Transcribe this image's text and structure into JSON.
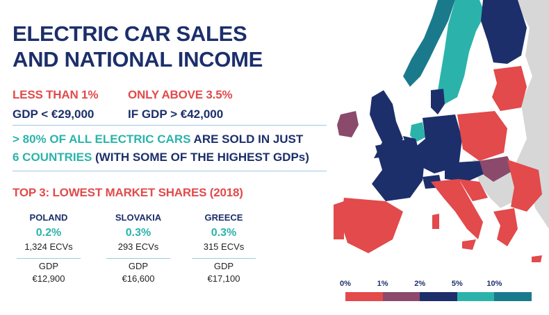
{
  "title": {
    "line1": "ELECTRIC CAR SALES",
    "line2": "AND NATIONAL INCOME"
  },
  "stats": [
    {
      "label": "LESS THAN 1%",
      "value": "GDP < €29,000"
    },
    {
      "label": "ONLY ABOVE 3.5%",
      "value": "IF GDP > €42,000"
    }
  ],
  "share": {
    "highlight": "> 80% OF ALL ELECTRIC CARS",
    "mid": " ARE SOLD IN JUST",
    "highlight2": "6 COUNTRIES",
    "rest": " (WITH SOME OF THE HIGHEST GDPs)"
  },
  "top3_title": "TOP 3: LOWEST MARKET SHARES (2018)",
  "countries": [
    {
      "name": "POLAND",
      "share": "0.2%",
      "ecvs": "1,324 ECVs",
      "gdp_label": "GDP",
      "gdp": "€12,900"
    },
    {
      "name": "SLOVAKIA",
      "share": "0.3%",
      "ecvs": "293 ECVs",
      "gdp_label": "GDP",
      "gdp": "€16,600"
    },
    {
      "name": "GREECE",
      "share": "0.3%",
      "ecvs": "315 ECVs",
      "gdp_label": "GDP",
      "gdp": "€17,100"
    }
  ],
  "legend": {
    "ticks": [
      "0%",
      "1%",
      "2%",
      "5%",
      "10%"
    ],
    "colors": [
      "#e24a4b",
      "#8b4a6b",
      "#1c2f6b",
      "#2bb3ab",
      "#1a7a8c"
    ]
  },
  "colors": {
    "navy": "#1c2f6b",
    "red": "#e24a4b",
    "teal": "#2bb3ab",
    "dark_teal": "#1a7a8c",
    "purple": "#8b4a6b",
    "gray": "#d7d7d7"
  }
}
